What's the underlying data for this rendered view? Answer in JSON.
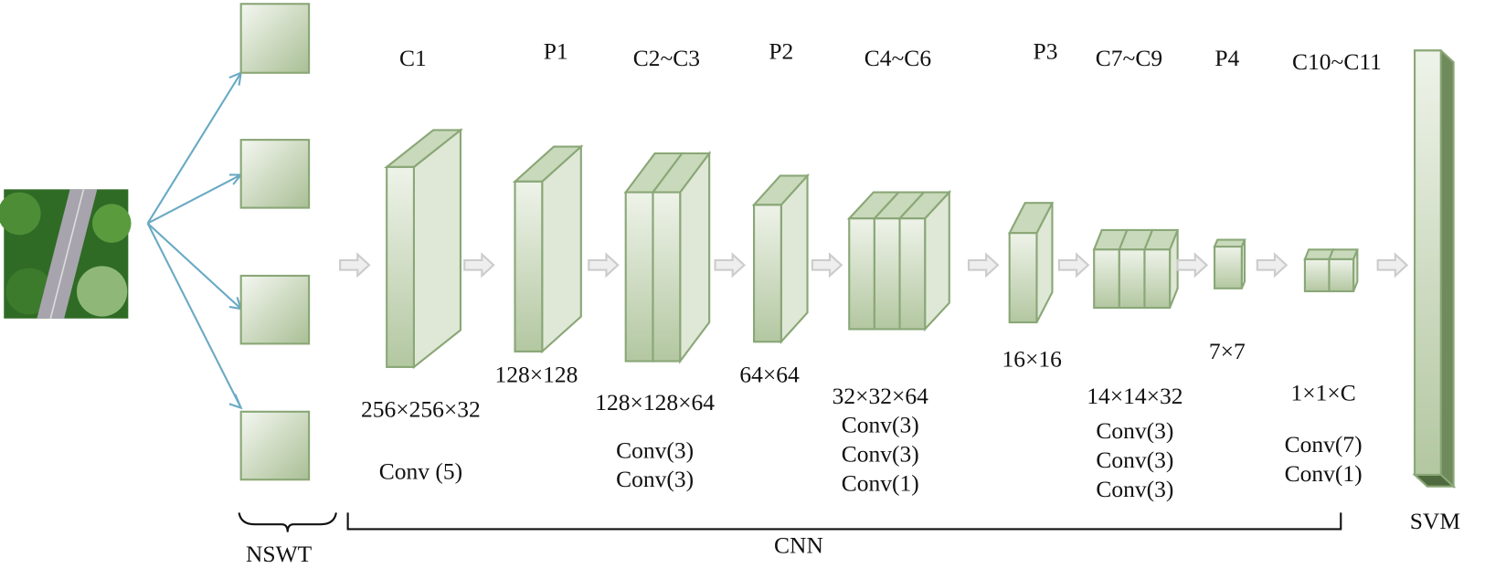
{
  "layers": [
    {
      "name": "C1",
      "size": "256×256×32",
      "ops": [
        "Conv (5)"
      ]
    },
    {
      "name": "P1",
      "size": "128×128"
    },
    {
      "name": "C2~C3",
      "size": "128×128×64",
      "ops": [
        "Conv(3)",
        "Conv(3)"
      ]
    },
    {
      "name": "P2",
      "size": "64×64"
    },
    {
      "name": "C4~C6",
      "size": "32×32×64",
      "ops": [
        "Conv(3)",
        "Conv(3)",
        "Conv(1)"
      ]
    },
    {
      "name": "P3",
      "size": "16×16"
    },
    {
      "name": "C7~C9",
      "size": "14×14×32",
      "ops": [
        "Conv(3)",
        "Conv(3)",
        "Conv(3)"
      ]
    },
    {
      "name": "P4",
      "size": "7×7"
    },
    {
      "name": "C10~C11",
      "size": "1×1×C",
      "ops": [
        "Conv(7)",
        "Conv(1)"
      ]
    }
  ],
  "groups": {
    "nswt": "NSWT",
    "cnn": "CNN"
  },
  "classifier": "SVM"
}
